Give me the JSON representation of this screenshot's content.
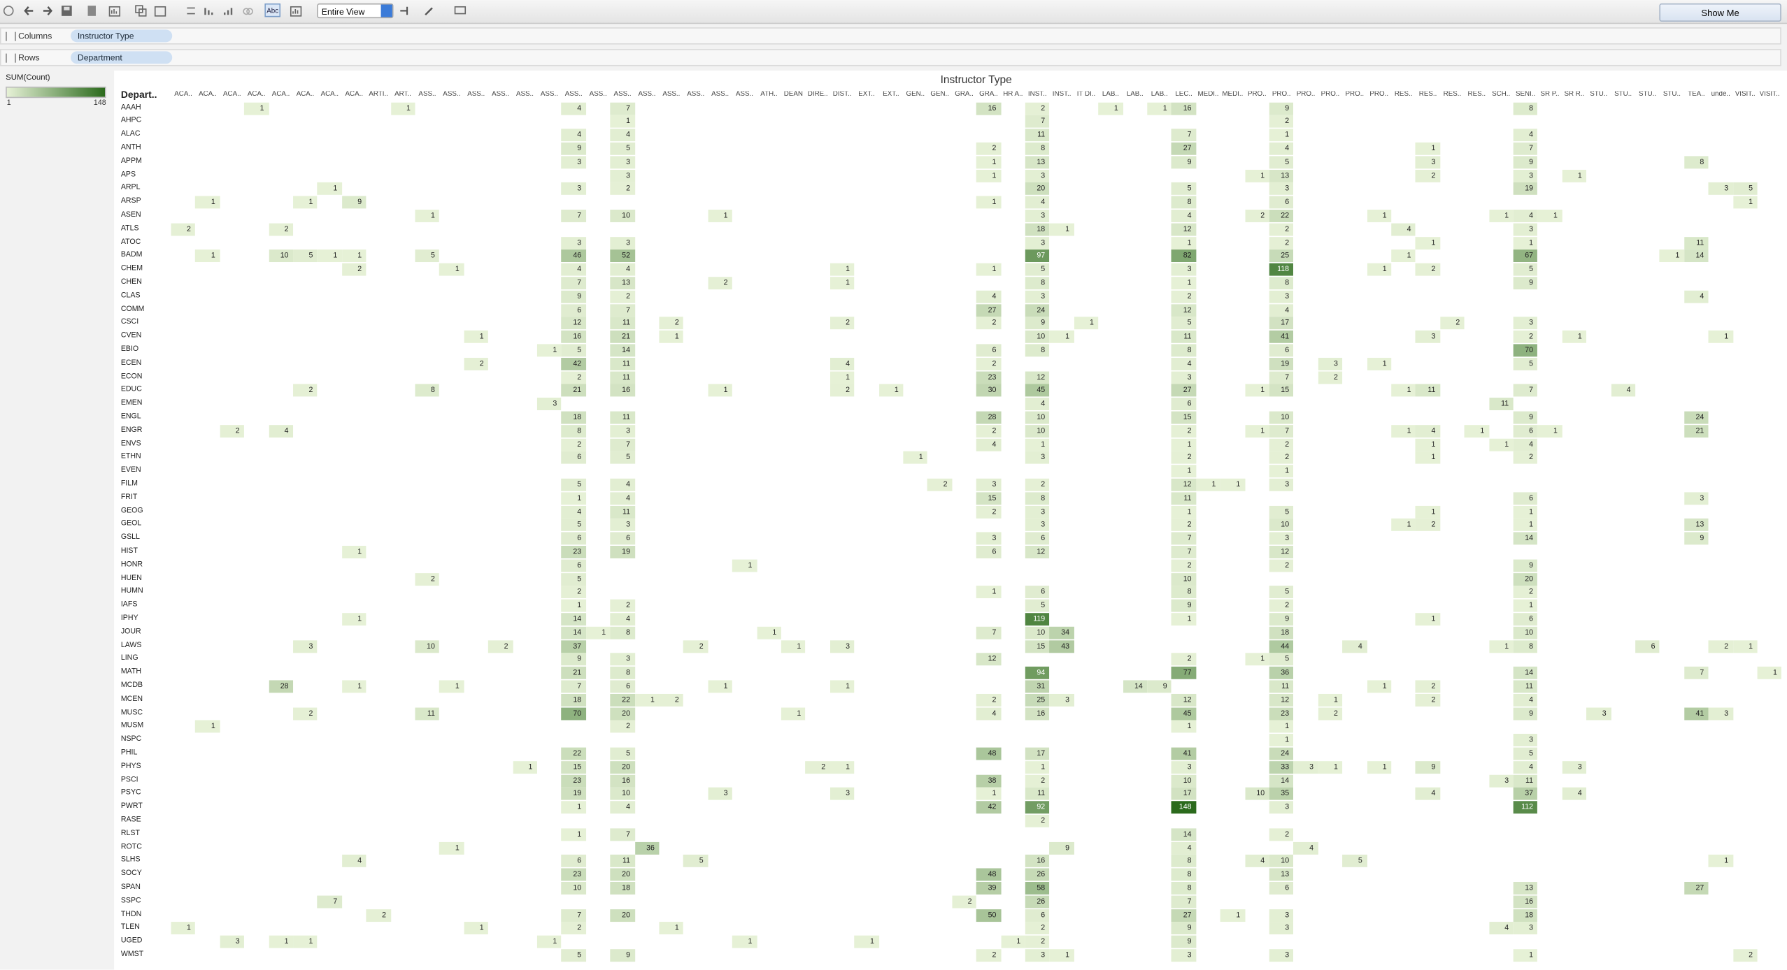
{
  "toolbar": {
    "view_mode": "Entire View",
    "show_me": "Show Me"
  },
  "shelves": {
    "columns": {
      "label": "Columns",
      "pill": "Instructor Type"
    },
    "rows": {
      "label": "Rows",
      "pill": "Department"
    }
  },
  "legend": {
    "title": "SUM(Count)",
    "min": 1,
    "max": 148,
    "color_low": "#e6f1d6",
    "color_high": "#2b6a1c"
  },
  "table": {
    "title": "Instructor Type",
    "row_header": "Depart..",
    "columns": [
      "ACA..",
      "ACA..",
      "ACA..",
      "ACA..",
      "ACA..",
      "ACA..",
      "ACA..",
      "ACA..",
      "ARTI..",
      "ART..",
      "ASS..",
      "ASS..",
      "ASS..",
      "ASS..",
      "ASS..",
      "ASS..",
      "ASS..",
      "ASS..",
      "ASS..",
      "ASS..",
      "ASS..",
      "ASS..",
      "ASS..",
      "ASS..",
      "ATH..",
      "DEAN",
      "DIRE..",
      "DIST..",
      "EXT..",
      "EXT..",
      "GEN..",
      "GEN..",
      "GRA..",
      "GRA..",
      "HR A..",
      "INST..",
      "INST..",
      "IT DI..",
      "LAB..",
      "LAB..",
      "LAB..",
      "LEC..",
      "MEDI..",
      "MEDI..",
      "PRO..",
      "PRO..",
      "PRO..",
      "PRO..",
      "PRO..",
      "PRO..",
      "RES..",
      "RES..",
      "RES..",
      "RES..",
      "SCH..",
      "SENI..",
      "SR P..",
      "SR R..",
      "STU..",
      "STU..",
      "STU..",
      "STU..",
      "TEA..",
      "unde..",
      "VISIT..",
      "VISIT.."
    ],
    "rows": [
      {
        "label": "AAAH",
        "cells": {
          "3": 1,
          "9": 1,
          "16": 4,
          "18": 7,
          "33": 16,
          "35": 2,
          "38": 1,
          "40": 1,
          "41": 16,
          "45": 9,
          "55": 8
        }
      },
      {
        "label": "AHPC",
        "cells": {
          "18": 1,
          "35": 7,
          "45": 2
        }
      },
      {
        "label": "ALAC",
        "cells": {
          "16": 4,
          "18": 4,
          "35": 11,
          "41": 7,
          "45": 1,
          "55": 4
        }
      },
      {
        "label": "ANTH",
        "cells": {
          "16": 9,
          "18": 5,
          "33": 2,
          "35": 8,
          "41": 27,
          "45": 4,
          "51": 1,
          "55": 7
        }
      },
      {
        "label": "APPM",
        "cells": {
          "16": 3,
          "18": 3,
          "33": 1,
          "35": 13,
          "41": 9,
          "45": 5,
          "51": 3,
          "55": 9,
          "62": 8
        }
      },
      {
        "label": "APS",
        "cells": {
          "18": 3,
          "33": 1,
          "35": 3,
          "44": 1,
          "45": 13,
          "51": 2,
          "55": 3,
          "57": 1
        }
      },
      {
        "label": "ARPL",
        "cells": {
          "6": 1,
          "16": 3,
          "18": 2,
          "35": 20,
          "41": 5,
          "45": 3,
          "55": 19,
          "63": 3,
          "64": 5
        }
      },
      {
        "label": "ARSP",
        "cells": {
          "1": 1,
          "5": 1,
          "7": 9,
          "33": 1,
          "35": 4,
          "41": 8,
          "45": 6,
          "64": 1
        }
      },
      {
        "label": "ASEN",
        "cells": {
          "10": 1,
          "16": 7,
          "18": 10,
          "22": 1,
          "35": 3,
          "41": 4,
          "44": 2,
          "45": 22,
          "49": 1,
          "54": 1,
          "55": 4,
          "56": 1
        }
      },
      {
        "label": "ATLS",
        "cells": {
          "0": 2,
          "4": 2,
          "35": 18,
          "36": 1,
          "41": 12,
          "45": 2,
          "50": 4,
          "55": 3
        }
      },
      {
        "label": "ATOC",
        "cells": {
          "16": 3,
          "18": 3,
          "35": 3,
          "41": 1,
          "45": 2,
          "51": 1,
          "55": 1,
          "62": 11
        }
      },
      {
        "label": "BADM",
        "cells": {
          "1": 1,
          "4": 10,
          "5": 5,
          "6": 1,
          "7": 1,
          "10": 5,
          "16": 46,
          "18": 52,
          "35": 97,
          "41": 82,
          "45": 25,
          "50": 1,
          "55": 67,
          "61": 1,
          "62": 14
        }
      },
      {
        "label": "CHEM",
        "cells": {
          "7": 2,
          "11": 1,
          "16": 4,
          "18": 4,
          "27": 1,
          "33": 1,
          "35": 5,
          "41": 3,
          "45": 118,
          "49": 1,
          "51": 2,
          "55": 5
        }
      },
      {
        "label": "CHEN",
        "cells": {
          "16": 7,
          "18": 13,
          "22": 2,
          "27": 1,
          "35": 8,
          "41": 1,
          "45": 8,
          "55": 9
        }
      },
      {
        "label": "CLAS",
        "cells": {
          "16": 9,
          "18": 2,
          "33": 4,
          "35": 3,
          "41": 2,
          "45": 3,
          "62": 4
        }
      },
      {
        "label": "COMM",
        "cells": {
          "16": 6,
          "18": 7,
          "33": 27,
          "35": 24,
          "41": 12,
          "45": 4
        }
      },
      {
        "label": "CSCI",
        "cells": {
          "16": 12,
          "18": 11,
          "20": 2,
          "27": 2,
          "33": 2,
          "35": 9,
          "37": 1,
          "41": 5,
          "45": 17,
          "52": 2,
          "55": 3
        }
      },
      {
        "label": "CVEN",
        "cells": {
          "12": 1,
          "16": 16,
          "18": 21,
          "20": 1,
          "35": 10,
          "36": 1,
          "41": 11,
          "45": 41,
          "51": 3,
          "55": 2,
          "57": 1,
          "63": 1
        }
      },
      {
        "label": "EBIO",
        "cells": {
          "15": 1,
          "16": 5,
          "18": 14,
          "33": 6,
          "35": 8,
          "41": 8,
          "45": 6,
          "55": 70
        }
      },
      {
        "label": "ECEN",
        "cells": {
          "12": 2,
          "16": 42,
          "18": 11,
          "27": 4,
          "33": 2,
          "41": 4,
          "45": 19,
          "47": 3,
          "49": 1,
          "55": 5
        }
      },
      {
        "label": "ECON",
        "cells": {
          "16": 2,
          "18": 11,
          "27": 1,
          "33": 23,
          "35": 12,
          "41": 3,
          "45": 7,
          "47": 2
        }
      },
      {
        "label": "EDUC",
        "cells": {
          "5": 2,
          "10": 8,
          "16": 21,
          "18": 16,
          "22": 1,
          "27": 2,
          "29": 1,
          "33": 30,
          "35": 45,
          "41": 27,
          "44": 1,
          "45": 15,
          "50": 1,
          "51": 11,
          "55": 7,
          "59": 4
        }
      },
      {
        "label": "EMEN",
        "cells": {
          "15": 3,
          "35": 4,
          "41": 6,
          "54": 11
        }
      },
      {
        "label": "ENGL",
        "cells": {
          "16": 18,
          "18": 11,
          "33": 28,
          "35": 10,
          "41": 15,
          "45": 10,
          "55": 9,
          "62": 24
        }
      },
      {
        "label": "ENGR",
        "cells": {
          "2": 2,
          "4": 4,
          "16": 8,
          "18": 3,
          "33": 2,
          "35": 10,
          "41": 2,
          "44": 1,
          "45": 7,
          "50": 1,
          "51": 4,
          "53": 1,
          "55": 6,
          "56": 1,
          "62": 21
        }
      },
      {
        "label": "ENVS",
        "cells": {
          "16": 2,
          "18": 7,
          "33": 4,
          "35": 1,
          "41": 1,
          "45": 2,
          "51": 1,
          "54": 1,
          "55": 4
        }
      },
      {
        "label": "ETHN",
        "cells": {
          "16": 6,
          "18": 5,
          "30": 1,
          "35": 3,
          "41": 2,
          "45": 2,
          "51": 1,
          "55": 2
        }
      },
      {
        "label": "EVEN",
        "cells": {
          "41": 1,
          "45": 1
        }
      },
      {
        "label": "FILM",
        "cells": {
          "16": 5,
          "18": 4,
          "31": 2,
          "33": 3,
          "35": 2,
          "41": 12,
          "42": 1,
          "43": 1,
          "45": 3
        }
      },
      {
        "label": "FRIT",
        "cells": {
          "16": 1,
          "18": 4,
          "33": 15,
          "35": 8,
          "41": 11,
          "55": 6,
          "62": 3
        }
      },
      {
        "label": "GEOG",
        "cells": {
          "16": 4,
          "18": 11,
          "33": 2,
          "35": 3,
          "41": 1,
          "45": 5,
          "51": 1,
          "55": 1
        }
      },
      {
        "label": "GEOL",
        "cells": {
          "16": 5,
          "18": 3,
          "35": 3,
          "41": 2,
          "45": 10,
          "50": 1,
          "51": 2,
          "55": 1,
          "62": 13
        }
      },
      {
        "label": "GSLL",
        "cells": {
          "16": 6,
          "18": 6,
          "33": 3,
          "35": 6,
          "41": 7,
          "45": 3,
          "55": 14,
          "62": 9
        }
      },
      {
        "label": "HIST",
        "cells": {
          "7": 1,
          "16": 23,
          "18": 19,
          "33": 6,
          "35": 12,
          "41": 7,
          "45": 12
        }
      },
      {
        "label": "HONR",
        "cells": {
          "16": 6,
          "23": 1,
          "41": 2,
          "45": 2,
          "55": 9
        }
      },
      {
        "label": "HUEN",
        "cells": {
          "10": 2,
          "16": 5,
          "41": 10,
          "55": 20
        }
      },
      {
        "label": "HUMN",
        "cells": {
          "16": 2,
          "33": 1,
          "35": 6,
          "41": 8,
          "45": 5,
          "55": 2
        }
      },
      {
        "label": "IAFS",
        "cells": {
          "16": 1,
          "18": 2,
          "35": 5,
          "41": 9,
          "45": 2,
          "55": 1
        }
      },
      {
        "label": "IPHY",
        "cells": {
          "7": 1,
          "16": 14,
          "18": 4,
          "35": 119,
          "41": 1,
          "45": 9,
          "51": 1,
          "55": 6
        }
      },
      {
        "label": "JOUR",
        "cells": {
          "16": 14,
          "17": 1,
          "18": 8,
          "24": 1,
          "33": 7,
          "35": 10,
          "36": 34,
          "45": 18,
          "55": 10
        }
      },
      {
        "label": "LAWS",
        "cells": {
          "5": 3,
          "10": 10,
          "13": 2,
          "16": 37,
          "21": 2,
          "25": 1,
          "27": 3,
          "35": 15,
          "36": 43,
          "45": 44,
          "48": 4,
          "54": 1,
          "55": 8,
          "60": 6,
          "63": 2,
          "64": 1
        }
      },
      {
        "label": "LING",
        "cells": {
          "16": 9,
          "18": 3,
          "33": 12,
          "41": 2,
          "44": 1,
          "45": 5
        }
      },
      {
        "label": "MATH",
        "cells": {
          "16": 21,
          "18": 8,
          "35": 94,
          "41": 77,
          "45": 36,
          "55": 14,
          "62": 7,
          "65": 1
        }
      },
      {
        "label": "MCDB",
        "cells": {
          "4": 28,
          "7": 1,
          "11": 1,
          "16": 7,
          "18": 6,
          "22": 1,
          "27": 1,
          "35": 31,
          "39": 14,
          "40": 9,
          "45": 11,
          "49": 1,
          "51": 2,
          "55": 11
        }
      },
      {
        "label": "MCEN",
        "cells": {
          "16": 18,
          "18": 22,
          "19": 1,
          "20": 2,
          "33": 2,
          "35": 25,
          "36": 3,
          "41": 12,
          "45": 12,
          "47": 1,
          "51": 2,
          "55": 4
        }
      },
      {
        "label": "MUSC",
        "cells": {
          "5": 2,
          "10": 11,
          "16": 70,
          "18": 20,
          "25": 1,
          "33": 4,
          "35": 16,
          "41": 45,
          "45": 23,
          "47": 2,
          "55": 9,
          "58": 3,
          "62": 41,
          "63": 3
        }
      },
      {
        "label": "MUSM",
        "cells": {
          "1": 1,
          "18": 2,
          "41": 1,
          "45": 1
        }
      },
      {
        "label": "NSPC",
        "cells": {
          "45": 1,
          "55": 3
        }
      },
      {
        "label": "PHIL",
        "cells": {
          "16": 22,
          "18": 5,
          "33": 48,
          "35": 17,
          "41": 41,
          "45": 24,
          "55": 5
        }
      },
      {
        "label": "PHYS",
        "cells": {
          "14": 1,
          "16": 15,
          "18": 20,
          "26": 2,
          "27": 1,
          "35": 1,
          "41": 3,
          "45": 33,
          "46": 3,
          "47": 1,
          "49": 1,
          "51": 9,
          "55": 4,
          "57": 3
        }
      },
      {
        "label": "PSCI",
        "cells": {
          "16": 23,
          "18": 16,
          "33": 38,
          "35": 2,
          "41": 10,
          "45": 14,
          "54": 3,
          "55": 11
        }
      },
      {
        "label": "PSYC",
        "cells": {
          "16": 19,
          "18": 10,
          "22": 3,
          "27": 3,
          "33": 1,
          "35": 11,
          "41": 17,
          "44": 10,
          "45": 35,
          "51": 4,
          "55": 37,
          "57": 4
        }
      },
      {
        "label": "PWRT",
        "cells": {
          "16": 1,
          "18": 4,
          "33": 42,
          "35": 92,
          "41": 148,
          "45": 3,
          "55": 112
        }
      },
      {
        "label": "RASE",
        "cells": {
          "35": 2
        }
      },
      {
        "label": "RLST",
        "cells": {
          "16": 1,
          "18": 7,
          "41": 14,
          "45": 2
        }
      },
      {
        "label": "ROTC",
        "cells": {
          "11": 1,
          "19": 36,
          "36": 9,
          "41": 4,
          "46": 4
        }
      },
      {
        "label": "SLHS",
        "cells": {
          "7": 4,
          "16": 6,
          "18": 11,
          "21": 5,
          "35": 16,
          "41": 8,
          "44": 4,
          "45": 10,
          "48": 5,
          "63": 1
        }
      },
      {
        "label": "SOCY",
        "cells": {
          "16": 23,
          "18": 20,
          "33": 48,
          "35": 26,
          "41": 8,
          "45": 13
        }
      },
      {
        "label": "SPAN",
        "cells": {
          "16": 10,
          "18": 18,
          "33": 39,
          "35": 58,
          "41": 8,
          "45": 6,
          "55": 13,
          "62": 27
        }
      },
      {
        "label": "SSPC",
        "cells": {
          "6": 7,
          "32": 2,
          "35": 26,
          "41": 7,
          "55": 16
        }
      },
      {
        "label": "THDN",
        "cells": {
          "8": 2,
          "16": 7,
          "18": 20,
          "33": 50,
          "35": 6,
          "41": 27,
          "43": 1,
          "45": 3,
          "55": 18
        }
      },
      {
        "label": "TLEN",
        "cells": {
          "0": 1,
          "12": 1,
          "16": 2,
          "20": 1,
          "35": 2,
          "41": 9,
          "45": 3,
          "54": 4,
          "55": 3
        }
      },
      {
        "label": "UGED",
        "cells": {
          "2": 3,
          "4": 1,
          "5": 1,
          "15": 1,
          "23": 1,
          "28": 1,
          "34": 1,
          "35": 2,
          "41": 9
        }
      },
      {
        "label": "WMST",
        "cells": {
          "16": 5,
          "18": 9,
          "33": 2,
          "35": 3,
          "36": 1,
          "41": 3,
          "45": 3,
          "55": 1,
          "64": 2
        }
      }
    ]
  }
}
